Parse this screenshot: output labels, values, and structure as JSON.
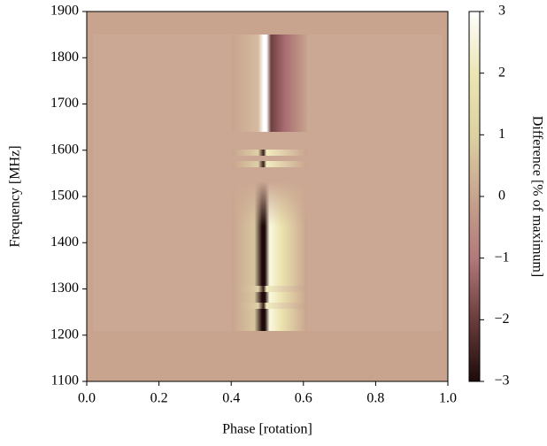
{
  "chart_data": {
    "type": "heatmap",
    "xlabel": "Phase [rotation]",
    "ylabel": "Frequency [MHz]",
    "xlim": [
      0,
      1
    ],
    "ylim": [
      1100,
      1900
    ],
    "xticks": [
      {
        "value": 0,
        "label": "0.0"
      },
      {
        "value": 0.2,
        "label": "0.2"
      },
      {
        "value": 0.4,
        "label": "0.4"
      },
      {
        "value": 0.6,
        "label": "0.6"
      },
      {
        "value": 0.8,
        "label": "0.8"
      },
      {
        "value": 1,
        "label": "1.0"
      }
    ],
    "yticks": [
      1100,
      1200,
      1300,
      1400,
      1500,
      1600,
      1700,
      1800,
      1900
    ],
    "colorbar": {
      "label": "Difference [% of maximum]",
      "lim": [
        -3,
        3
      ],
      "ticks": [
        {
          "value": -3,
          "label": "−3"
        },
        {
          "value": -2,
          "label": "−2"
        },
        {
          "value": -1,
          "label": "−1"
        },
        0,
        1,
        2,
        3
      ],
      "colormap": [
        "#1e0a0a",
        "#6b3c3c",
        "#b27a7a",
        "#c8a48e",
        "#ddd1a2",
        "#ece6b4",
        "#ffffff"
      ]
    }
  }
}
